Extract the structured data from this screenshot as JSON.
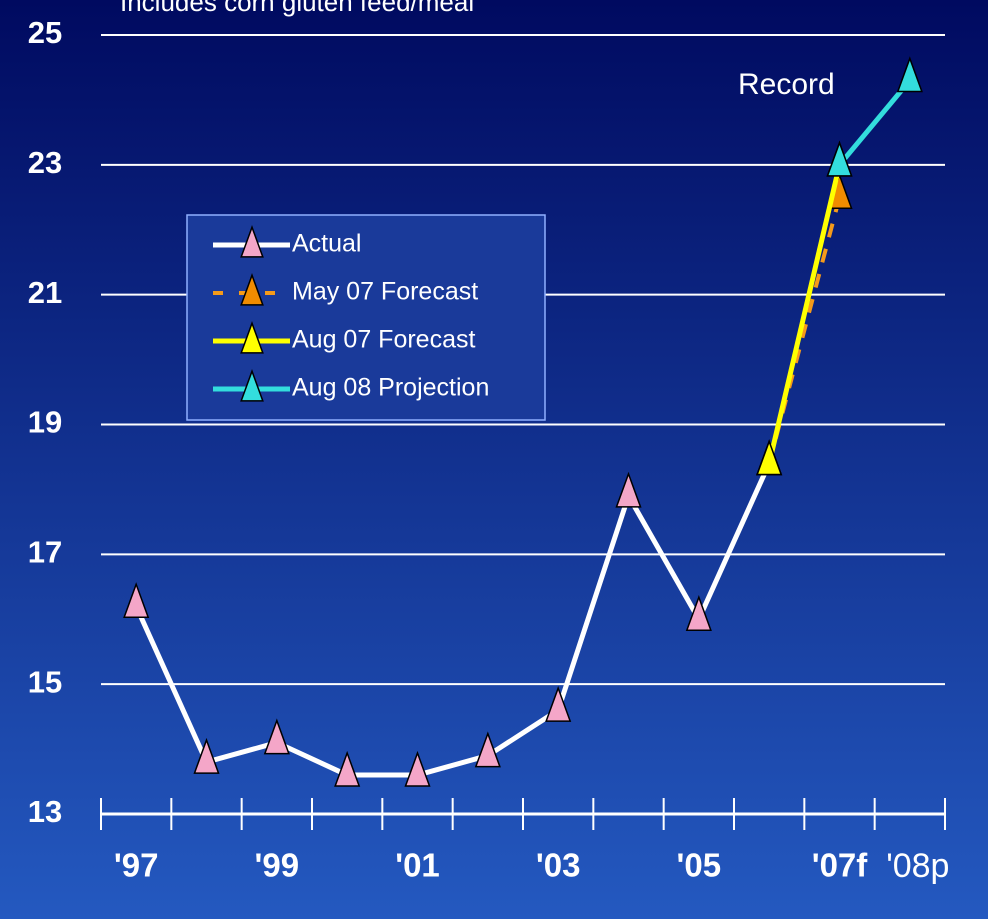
{
  "chart_data": {
    "type": "line",
    "subtitle": "Includes corn gluten feed/meal",
    "annotation": "Record",
    "categories": [
      "'97",
      null,
      "'99",
      null,
      "'01",
      null,
      "'03",
      null,
      "'05",
      null,
      "'07f",
      "'08p"
    ],
    "series": [
      {
        "name": "Actual",
        "color": "#ffffff",
        "marker_color": "#f4a6c8",
        "dashed": false,
        "values": [
          16.2,
          13.8,
          14.1,
          13.6,
          13.6,
          13.9,
          14.6,
          17.9,
          16.0,
          18.4,
          null,
          null
        ]
      },
      {
        "name": "May 07 Forecast",
        "color": "#f59a1a",
        "marker_color": "#f08c00",
        "dashed": true,
        "values": [
          null,
          null,
          null,
          null,
          null,
          null,
          null,
          null,
          null,
          18.4,
          22.5,
          null
        ]
      },
      {
        "name": "Aug 07 Forecast",
        "color": "#ffff00",
        "marker_color": "#ffff00",
        "dashed": false,
        "values": [
          null,
          null,
          null,
          null,
          null,
          null,
          null,
          null,
          null,
          18.4,
          23.0,
          null
        ]
      },
      {
        "name": "Aug 08 Projection",
        "color": "#33dddd",
        "marker_color": "#33dddd",
        "dashed": false,
        "values": [
          null,
          null,
          null,
          null,
          null,
          null,
          null,
          null,
          null,
          null,
          23.0,
          24.3
        ]
      }
    ],
    "ylim": [
      13,
      25
    ],
    "yticks": [
      13,
      15,
      17,
      19,
      21,
      23,
      25
    ],
    "grid": true
  }
}
